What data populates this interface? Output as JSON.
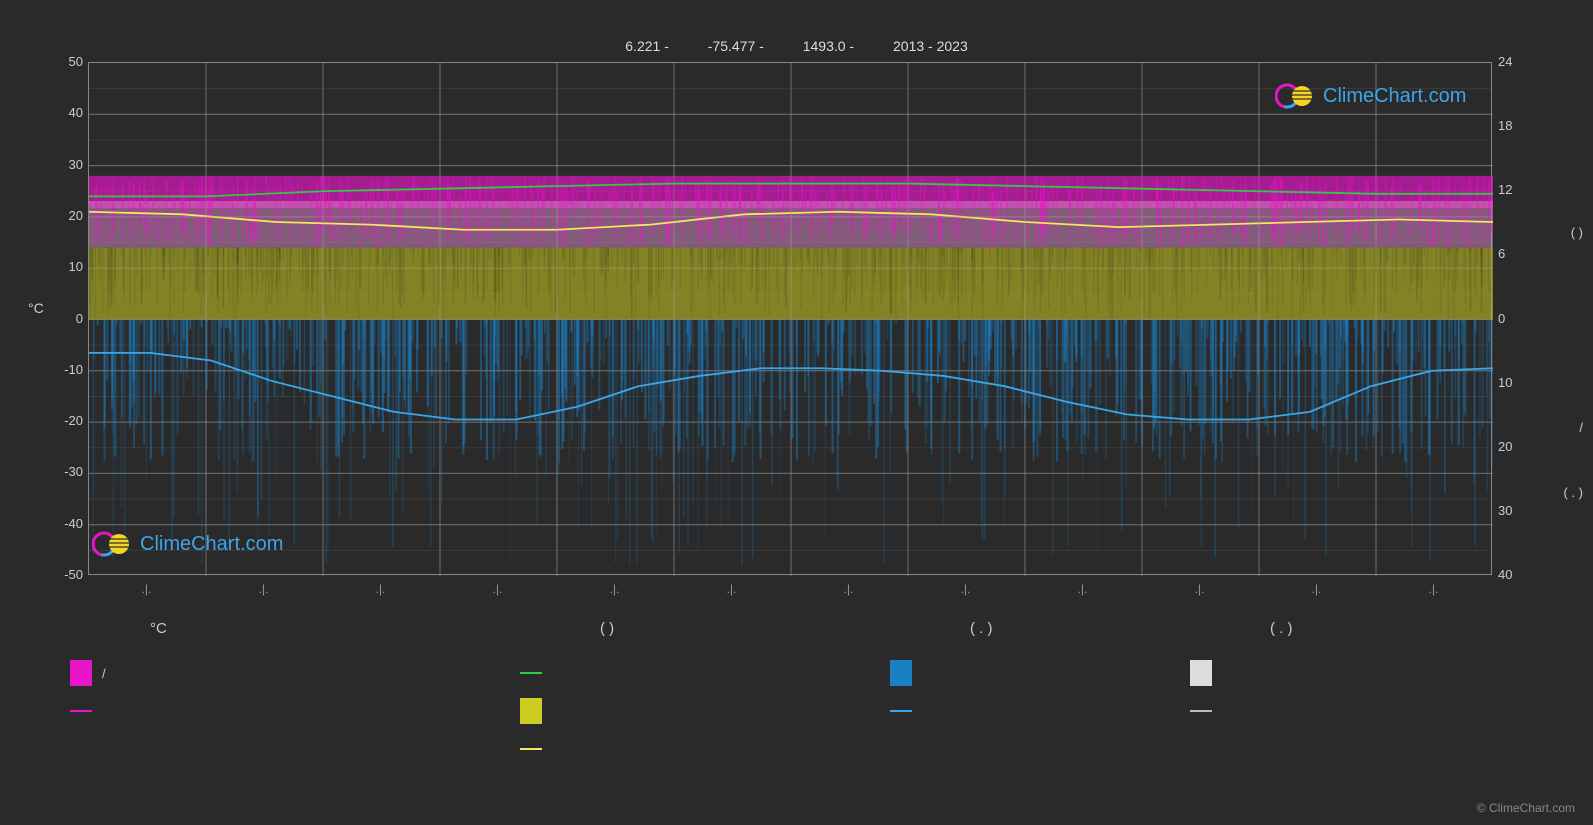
{
  "header": {
    "lat": "6.221 -",
    "lon": "-75.477 -",
    "elev": "1493.0 -",
    "years": "2013 - 2023"
  },
  "brand": "ClimeChart.com",
  "copyright": "© ClimeChart.com",
  "chart": {
    "type": "climate-combo",
    "background": "#2a2a2a",
    "grid_color": "#888888",
    "grid_minor_color": "#555555",
    "left_axis": {
      "label": "°C",
      "min": -50,
      "max": 50,
      "step": 10,
      "ticks": [
        50,
        40,
        30,
        20,
        10,
        0,
        -10,
        -20,
        -30,
        -40,
        -50
      ]
    },
    "right_axis": {
      "ticks_top": [
        24,
        18,
        12,
        6,
        0
      ],
      "ticks_bottom": [
        10,
        20,
        30,
        40
      ],
      "paren_top": "(     )",
      "paren_mid": "/",
      "paren_bot": "(  . )"
    },
    "x_ticks": [
      ".|.",
      ".|.",
      ".|.",
      ".|.",
      ".|.",
      ".|.",
      ".|.",
      ".|.",
      ".|.",
      ".|.",
      ".|.",
      ".|."
    ],
    "colors": {
      "temp_band_top": "#e815c9",
      "temp_band_mid": "#d98fc8",
      "temp_max_line": "#2ecc40",
      "temp_mean_line": "#f5e663",
      "temp_min_line": "#e815c9",
      "sun_band": "#cccc22",
      "precip_bars": "#1b7fc4",
      "precip_line": "#3da6e8",
      "snow": "#dddddd",
      "snow_line": "#bbbbbb"
    },
    "series": {
      "temp_max": [
        24,
        24,
        25,
        25.5,
        26,
        26.5,
        26.5,
        26.5,
        26,
        25.5,
        25,
        24.5,
        24.5
      ],
      "temp_mean": [
        21,
        20.5,
        19,
        18.5,
        17.5,
        17.5,
        18.5,
        20.5,
        21,
        20.5,
        19,
        18,
        18.5,
        19,
        19.5,
        19
      ],
      "precip_line_y": [
        -6.5,
        -6.5,
        -8,
        -12,
        -15,
        -18,
        -19.5,
        -19.5,
        -17,
        -13,
        -11,
        -9.5,
        -9.5,
        -10,
        -11,
        -13,
        -16,
        -18.5,
        -19.5,
        -19.5,
        -18,
        -13,
        -10,
        -9.5
      ],
      "temp_band_top_y": 28,
      "temp_band_bottom_y": 14,
      "sun_band_top_y": 14,
      "sun_band_bottom_y": 0,
      "precip_bars_top_y": 0,
      "precip_bars_bottom_y": -28
    }
  },
  "legend": {
    "headers": [
      "°C",
      "(          )",
      "(   . )",
      "(   . )"
    ],
    "row1": [
      {
        "type": "box",
        "color": "#e815c9",
        "label": "/"
      },
      {
        "type": "line",
        "color": "#2ecc40",
        "label": ""
      },
      {
        "type": "box",
        "color": "#1b7fc4",
        "label": ""
      },
      {
        "type": "box",
        "color": "#dddddd",
        "label": ""
      }
    ],
    "row2": [
      {
        "type": "line",
        "color": "#e815c9",
        "label": ""
      },
      {
        "type": "box",
        "color": "#cccc22",
        "label": ""
      },
      {
        "type": "line",
        "color": "#3da6e8",
        "label": ""
      },
      {
        "type": "line",
        "color": "#bbbbbb",
        "label": ""
      }
    ],
    "row3": [
      null,
      {
        "type": "line",
        "color": "#f5e663",
        "label": ""
      },
      null,
      null
    ],
    "col_positions": [
      0,
      450,
      820,
      1120
    ]
  }
}
